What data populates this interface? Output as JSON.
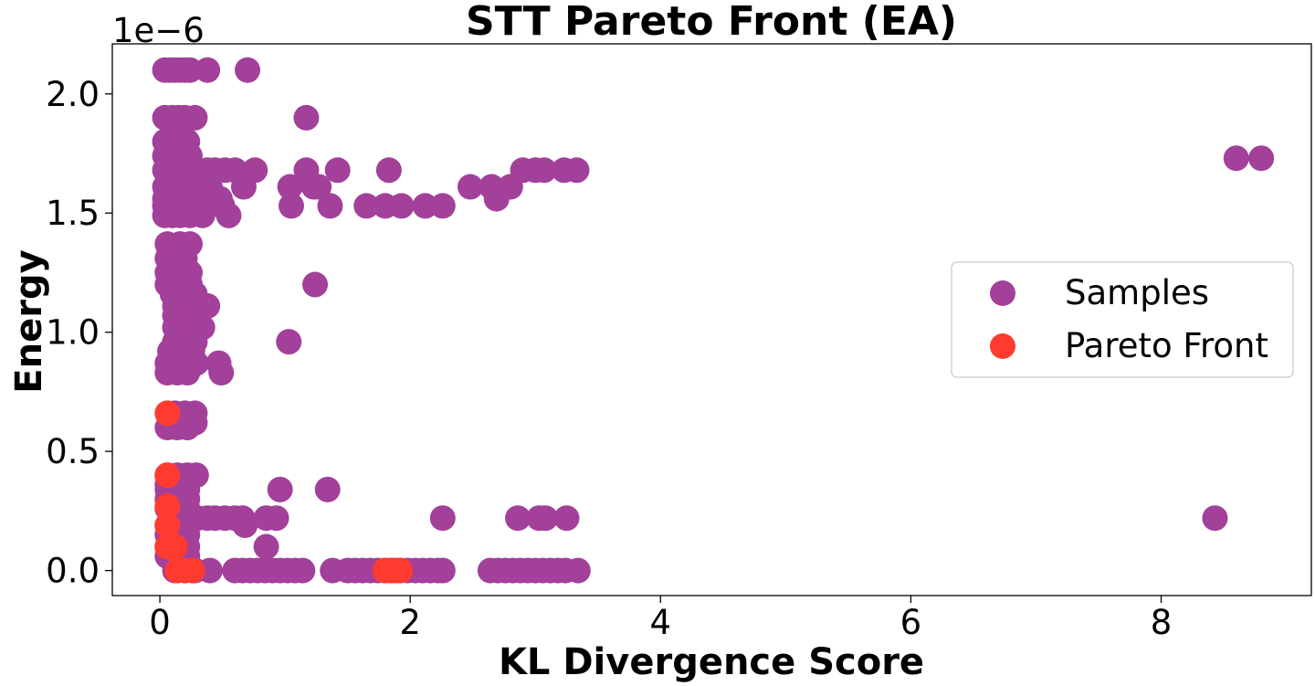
{
  "chart_data": {
    "type": "scatter",
    "title": "STT Pareto Front (EA)",
    "xlabel": "KL Divergence Score",
    "ylabel": "Energy",
    "y_offset_text": "1e−6",
    "y_scale_factor": 1e-06,
    "xlim": [
      -0.38,
      9.2
    ],
    "ylim": [
      -0.105,
      2.21
    ],
    "x_ticks": [
      0,
      2,
      4,
      6,
      8
    ],
    "x_tick_labels": [
      "0",
      "2",
      "4",
      "6",
      "8"
    ],
    "y_ticks": [
      0.0,
      0.5,
      1.0,
      1.5,
      2.0
    ],
    "y_tick_labels": [
      "0.0",
      "0.5",
      "1.0",
      "1.5",
      "2.0"
    ],
    "grid": false,
    "legend_position": "center-right",
    "series": [
      {
        "name": "Samples",
        "color": "#a2409a",
        "points": [
          [
            0.04,
            2.1
          ],
          [
            0.08,
            2.1
          ],
          [
            0.12,
            2.1
          ],
          [
            0.16,
            2.1
          ],
          [
            0.2,
            2.1
          ],
          [
            0.24,
            2.1
          ],
          [
            0.38,
            2.1
          ],
          [
            0.7,
            2.1
          ],
          [
            0.04,
            1.9
          ],
          [
            0.1,
            1.9
          ],
          [
            0.15,
            1.9
          ],
          [
            0.2,
            1.9
          ],
          [
            0.28,
            1.9
          ],
          [
            1.17,
            1.9
          ],
          [
            0.04,
            1.8
          ],
          [
            0.1,
            1.8
          ],
          [
            0.18,
            1.8
          ],
          [
            0.22,
            1.8
          ],
          [
            0.04,
            1.74
          ],
          [
            0.1,
            1.74
          ],
          [
            0.16,
            1.74
          ],
          [
            0.24,
            1.74
          ],
          [
            0.04,
            1.68
          ],
          [
            0.1,
            1.68
          ],
          [
            0.16,
            1.68
          ],
          [
            0.22,
            1.68
          ],
          [
            0.3,
            1.68
          ],
          [
            0.38,
            1.68
          ],
          [
            0.44,
            1.68
          ],
          [
            0.52,
            1.68
          ],
          [
            0.6,
            1.68
          ],
          [
            0.76,
            1.68
          ],
          [
            1.17,
            1.68
          ],
          [
            1.42,
            1.68
          ],
          [
            1.83,
            1.68
          ],
          [
            2.9,
            1.68
          ],
          [
            3.0,
            1.68
          ],
          [
            3.07,
            1.68
          ],
          [
            3.23,
            1.68
          ],
          [
            3.33,
            1.68
          ],
          [
            0.04,
            1.61
          ],
          [
            0.1,
            1.61
          ],
          [
            0.16,
            1.61
          ],
          [
            0.24,
            1.61
          ],
          [
            0.32,
            1.61
          ],
          [
            0.4,
            1.61
          ],
          [
            0.67,
            1.61
          ],
          [
            1.04,
            1.61
          ],
          [
            1.23,
            1.61
          ],
          [
            1.27,
            1.61
          ],
          [
            2.48,
            1.61
          ],
          [
            2.65,
            1.61
          ],
          [
            2.8,
            1.61
          ],
          [
            0.04,
            1.56
          ],
          [
            0.12,
            1.56
          ],
          [
            0.2,
            1.56
          ],
          [
            0.3,
            1.56
          ],
          [
            0.48,
            1.56
          ],
          [
            2.69,
            1.56
          ],
          [
            0.04,
            1.53
          ],
          [
            0.1,
            1.53
          ],
          [
            0.18,
            1.53
          ],
          [
            0.26,
            1.53
          ],
          [
            0.36,
            1.53
          ],
          [
            0.5,
            1.53
          ],
          [
            1.05,
            1.53
          ],
          [
            1.36,
            1.53
          ],
          [
            1.65,
            1.53
          ],
          [
            1.8,
            1.53
          ],
          [
            1.93,
            1.53
          ],
          [
            2.12,
            1.53
          ],
          [
            2.26,
            1.53
          ],
          [
            0.04,
            1.49
          ],
          [
            0.1,
            1.49
          ],
          [
            0.16,
            1.49
          ],
          [
            0.24,
            1.49
          ],
          [
            0.34,
            1.49
          ],
          [
            0.55,
            1.49
          ],
          [
            0.06,
            1.37
          ],
          [
            0.16,
            1.37
          ],
          [
            0.24,
            1.37
          ],
          [
            0.06,
            1.31
          ],
          [
            0.14,
            1.31
          ],
          [
            0.2,
            1.31
          ],
          [
            0.06,
            1.25
          ],
          [
            0.14,
            1.25
          ],
          [
            0.24,
            1.25
          ],
          [
            0.06,
            1.2
          ],
          [
            0.14,
            1.2
          ],
          [
            0.24,
            1.2
          ],
          [
            1.24,
            1.2
          ],
          [
            0.1,
            1.16
          ],
          [
            0.2,
            1.16
          ],
          [
            0.28,
            1.16
          ],
          [
            0.12,
            1.11
          ],
          [
            0.2,
            1.11
          ],
          [
            0.29,
            1.11
          ],
          [
            0.38,
            1.11
          ],
          [
            0.12,
            1.07
          ],
          [
            0.2,
            1.07
          ],
          [
            0.28,
            1.07
          ],
          [
            0.12,
            1.02
          ],
          [
            0.2,
            1.02
          ],
          [
            0.28,
            1.02
          ],
          [
            0.34,
            1.02
          ],
          [
            0.12,
            0.96
          ],
          [
            0.2,
            0.96
          ],
          [
            0.28,
            0.96
          ],
          [
            1.03,
            0.96
          ],
          [
            0.08,
            0.92
          ],
          [
            0.18,
            0.92
          ],
          [
            0.26,
            0.92
          ],
          [
            0.06,
            0.87
          ],
          [
            0.14,
            0.87
          ],
          [
            0.22,
            0.87
          ],
          [
            0.29,
            0.87
          ],
          [
            0.47,
            0.87
          ],
          [
            0.06,
            0.83
          ],
          [
            0.14,
            0.83
          ],
          [
            0.22,
            0.83
          ],
          [
            0.49,
            0.83
          ],
          [
            0.12,
            0.66
          ],
          [
            0.2,
            0.66
          ],
          [
            0.28,
            0.66
          ],
          [
            0.12,
            0.62
          ],
          [
            0.2,
            0.62
          ],
          [
            0.28,
            0.62
          ],
          [
            0.06,
            0.6
          ],
          [
            0.14,
            0.6
          ],
          [
            0.22,
            0.6
          ],
          [
            0.06,
            0.4
          ],
          [
            0.14,
            0.4
          ],
          [
            0.22,
            0.4
          ],
          [
            0.29,
            0.4
          ],
          [
            0.06,
            0.36
          ],
          [
            0.14,
            0.36
          ],
          [
            0.22,
            0.36
          ],
          [
            0.06,
            0.34
          ],
          [
            0.14,
            0.34
          ],
          [
            0.22,
            0.34
          ],
          [
            0.96,
            0.34
          ],
          [
            1.34,
            0.34
          ],
          [
            0.06,
            0.3
          ],
          [
            0.14,
            0.3
          ],
          [
            0.22,
            0.3
          ],
          [
            0.06,
            0.26
          ],
          [
            0.14,
            0.26
          ],
          [
            0.22,
            0.26
          ],
          [
            0.12,
            0.22
          ],
          [
            0.2,
            0.22
          ],
          [
            0.3,
            0.22
          ],
          [
            0.38,
            0.22
          ],
          [
            0.44,
            0.22
          ],
          [
            0.52,
            0.22
          ],
          [
            0.6,
            0.22
          ],
          [
            0.66,
            0.22
          ],
          [
            0.85,
            0.22
          ],
          [
            0.93,
            0.22
          ],
          [
            2.26,
            0.22
          ],
          [
            2.86,
            0.22
          ],
          [
            3.03,
            0.22
          ],
          [
            3.08,
            0.22
          ],
          [
            3.25,
            0.22
          ],
          [
            8.43,
            0.22
          ],
          [
            0.06,
            0.19
          ],
          [
            0.14,
            0.19
          ],
          [
            0.22,
            0.19
          ],
          [
            0.68,
            0.19
          ],
          [
            0.06,
            0.15
          ],
          [
            0.14,
            0.15
          ],
          [
            0.22,
            0.15
          ],
          [
            0.06,
            0.1
          ],
          [
            0.14,
            0.1
          ],
          [
            0.22,
            0.1
          ],
          [
            0.85,
            0.1
          ],
          [
            0.06,
            0.06
          ],
          [
            0.14,
            0.06
          ],
          [
            0.22,
            0.06
          ],
          [
            0.12,
            0.0
          ],
          [
            0.2,
            0.0
          ],
          [
            0.28,
            0.0
          ],
          [
            0.4,
            0.0
          ],
          [
            0.6,
            0.0
          ],
          [
            0.66,
            0.0
          ],
          [
            0.72,
            0.0
          ],
          [
            0.78,
            0.0
          ],
          [
            0.84,
            0.0
          ],
          [
            0.9,
            0.0
          ],
          [
            0.96,
            0.0
          ],
          [
            1.02,
            0.0
          ],
          [
            1.08,
            0.0
          ],
          [
            1.14,
            0.0
          ],
          [
            1.38,
            0.0
          ],
          [
            1.5,
            0.0
          ],
          [
            1.56,
            0.0
          ],
          [
            1.62,
            0.0
          ],
          [
            1.68,
            0.0
          ],
          [
            1.74,
            0.0
          ],
          [
            1.8,
            0.0
          ],
          [
            1.86,
            0.0
          ],
          [
            1.92,
            0.0
          ],
          [
            1.98,
            0.0
          ],
          [
            2.04,
            0.0
          ],
          [
            2.1,
            0.0
          ],
          [
            2.16,
            0.0
          ],
          [
            2.22,
            0.0
          ],
          [
            2.26,
            0.0
          ],
          [
            2.64,
            0.0
          ],
          [
            2.7,
            0.0
          ],
          [
            2.76,
            0.0
          ],
          [
            2.82,
            0.0
          ],
          [
            2.88,
            0.0
          ],
          [
            2.94,
            0.0
          ],
          [
            3.0,
            0.0
          ],
          [
            3.06,
            0.0
          ],
          [
            3.12,
            0.0
          ],
          [
            3.18,
            0.0
          ],
          [
            3.24,
            0.0
          ],
          [
            3.34,
            0.0
          ],
          [
            8.6,
            1.73
          ],
          [
            8.8,
            1.73
          ]
        ]
      },
      {
        "name": "Pareto Front",
        "color": "#ff3b30",
        "points": [
          [
            0.06,
            0.66
          ],
          [
            0.06,
            0.4
          ],
          [
            0.06,
            0.27
          ],
          [
            0.06,
            0.19
          ],
          [
            0.06,
            0.1
          ],
          [
            0.12,
            0.1
          ],
          [
            0.14,
            0.0
          ],
          [
            0.2,
            0.0
          ],
          [
            0.26,
            0.0
          ],
          [
            1.8,
            0.0
          ],
          [
            1.84,
            0.0
          ],
          [
            1.88,
            0.0
          ],
          [
            1.92,
            0.0
          ]
        ]
      }
    ]
  }
}
